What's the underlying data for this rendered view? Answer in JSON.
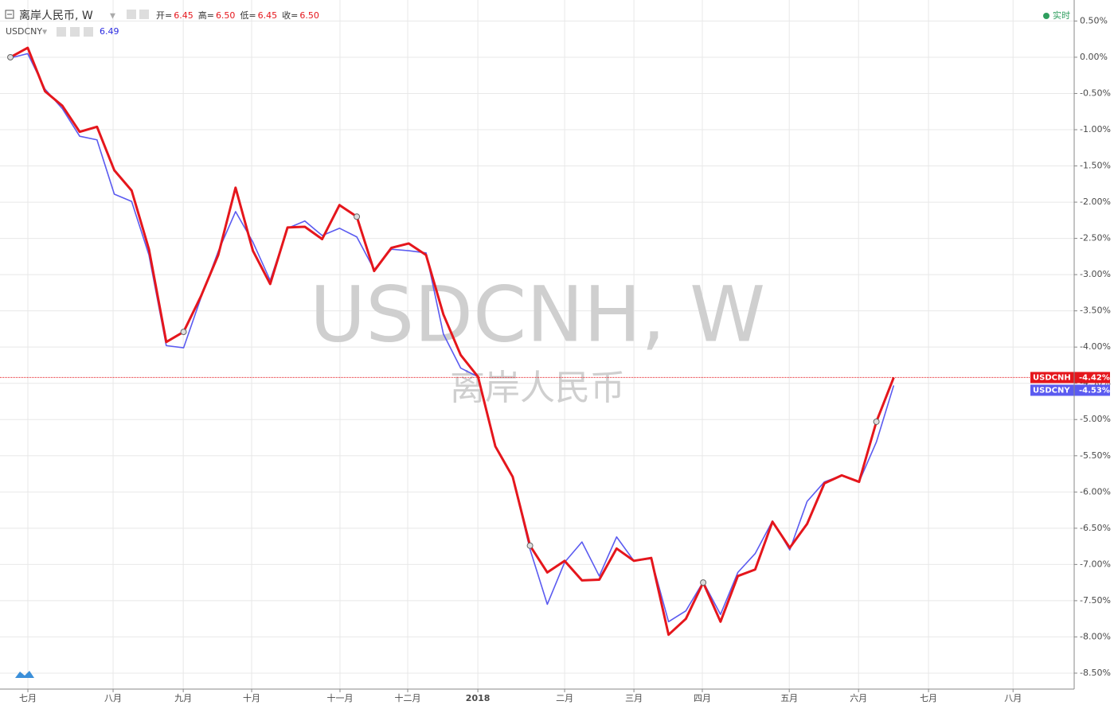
{
  "chart_data": {
    "type": "line",
    "header": {
      "title": "离岸人民币, W",
      "ohlc": [
        {
          "key": "开=",
          "value": "6.45"
        },
        {
          "key": "高=",
          "value": "6.50"
        },
        {
          "key": "低=",
          "value": "6.45"
        },
        {
          "key": "收=",
          "value": "6.50"
        }
      ],
      "compare_symbol": "USDCNY",
      "compare_value": "6.49",
      "status": "实时"
    },
    "watermark": {
      "symbol": "USDCNH, W",
      "name": "离岸人民币"
    },
    "x": [
      0,
      1,
      2,
      3,
      4,
      5,
      6,
      7,
      8,
      9,
      10,
      11,
      12,
      13,
      14,
      15,
      16,
      17,
      18,
      19,
      20,
      21,
      22,
      23,
      24,
      25,
      26,
      27,
      28,
      29,
      30,
      31,
      32,
      33,
      34,
      35,
      36,
      37,
      38,
      39,
      40,
      41,
      42,
      43,
      44,
      45,
      46,
      47,
      48,
      49,
      50,
      51
    ],
    "series": [
      {
        "name": "USDCNH",
        "color": "#e5161c",
        "last_label": "-4.42%",
        "values": [
          0,
          0.13,
          -0.47,
          -0.67,
          -1.03,
          -0.96,
          -1.56,
          -1.84,
          -2.65,
          -3.93,
          -3.79,
          -3.3,
          -2.73,
          -1.8,
          -2.67,
          -3.13,
          -2.35,
          -2.34,
          -2.51,
          -2.04,
          -2.2,
          -2.95,
          -2.63,
          -2.57,
          -2.73,
          -3.55,
          -4.11,
          -4.41,
          -5.37,
          -5.79,
          -6.74,
          -7.11,
          -6.95,
          -7.22,
          -7.21,
          -6.78,
          -6.95,
          -6.91,
          -7.97,
          -7.75,
          -7.25,
          -7.79,
          -7.16,
          -7.07,
          -6.41,
          -6.77,
          -6.44,
          -5.88,
          -5.77,
          -5.86,
          -5.03,
          -4.42
        ]
      },
      {
        "name": "USDCNY",
        "color": "#5b5bf0",
        "last_label": "-4.53%",
        "values": [
          -0.01,
          0.05,
          -0.44,
          -0.71,
          -1.09,
          -1.14,
          -1.89,
          -1.99,
          -2.73,
          -3.98,
          -4.01,
          -3.32,
          -2.68,
          -2.13,
          -2.55,
          -3.08,
          -2.36,
          -2.26,
          -2.46,
          -2.36,
          -2.48,
          -2.93,
          -2.65,
          -2.67,
          -2.7,
          -3.82,
          -4.29,
          -4.41,
          -5.38,
          -5.8,
          -6.79,
          -7.55,
          -6.97,
          -6.69,
          -7.16,
          -6.62,
          -6.95,
          -6.92,
          -7.79,
          -7.64,
          -7.24,
          -7.69,
          -7.11,
          -6.85,
          -6.4,
          -6.8,
          -6.13,
          -5.86,
          -5.77,
          -5.86,
          -5.31,
          -4.53
        ]
      }
    ],
    "xlim": [
      -0.6,
      61.42
    ],
    "xticks": [
      {
        "value": 1.01,
        "label": "七月"
      },
      {
        "value": 5.93,
        "label": "八月"
      },
      {
        "value": 9.98,
        "label": "九月"
      },
      {
        "value": 13.93,
        "label": "十月"
      },
      {
        "value": 19.03,
        "label": "十一月"
      },
      {
        "value": 22.94,
        "label": "十二月"
      },
      {
        "value": 26.99,
        "label": "2018"
      },
      {
        "value": 32.0,
        "label": "二月"
      },
      {
        "value": 36.0,
        "label": "三月"
      },
      {
        "value": 39.95,
        "label": "四月"
      },
      {
        "value": 44.97,
        "label": "五月"
      },
      {
        "value": 48.97,
        "label": "六月"
      },
      {
        "value": 53.01,
        "label": "七月"
      },
      {
        "value": 57.89,
        "label": "八月"
      }
    ],
    "ylim": [
      -8.72,
      0.79
    ],
    "yticks": [
      {
        "value": 0.5,
        "label": "0.50%"
      },
      {
        "value": 0,
        "label": "0.00%"
      },
      {
        "value": -0.5,
        "label": "-0.50%"
      },
      {
        "value": -1,
        "label": "-1.00%"
      },
      {
        "value": -1.5,
        "label": "-1.50%"
      },
      {
        "value": -2,
        "label": "-2.00%"
      },
      {
        "value": -2.5,
        "label": "-2.50%"
      },
      {
        "value": -3,
        "label": "-3.00%"
      },
      {
        "value": -3.5,
        "label": "-3.50%"
      },
      {
        "value": -4,
        "label": "-4.00%"
      },
      {
        "value": -4.5,
        "label": "-4.50%"
      },
      {
        "value": -5,
        "label": "-5.00%"
      },
      {
        "value": -5.5,
        "label": "-5.50%"
      },
      {
        "value": -6,
        "label": "-6.00%"
      },
      {
        "value": -6.5,
        "label": "-6.50%"
      },
      {
        "value": -7,
        "label": "-7.00%"
      },
      {
        "value": -7.5,
        "label": "-7.50%"
      },
      {
        "value": -8,
        "label": "-8.00%"
      },
      {
        "value": -8.5,
        "label": "-8.50%"
      }
    ],
    "grid": true
  }
}
